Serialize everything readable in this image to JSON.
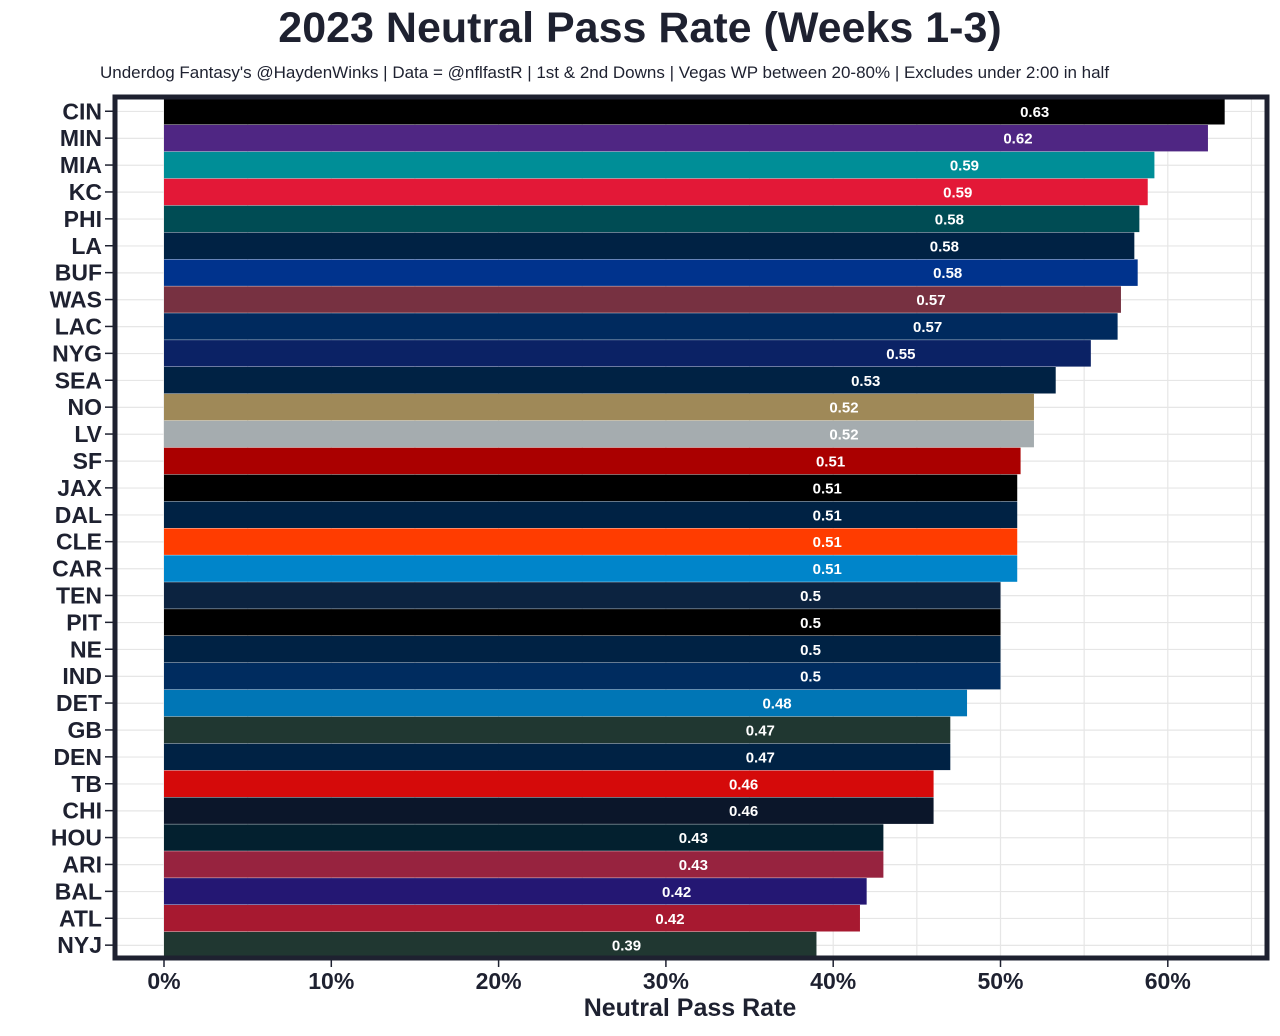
{
  "chart_data": {
    "type": "bar",
    "orientation": "horizontal",
    "title": "2023 Neutral Pass Rate (Weeks 1-3)",
    "subtitle": "Underdog Fantasy's @HaydenWinks | Data = @nflfastR | 1st & 2nd Downs | Vegas WP between 20-80% | Excludes under 2:00 in half",
    "xlabel": "Neutral Pass Rate",
    "ylabel": "",
    "xlim": [
      -0.029,
      0.66
    ],
    "x_ticks": [
      0,
      0.1,
      0.2,
      0.3,
      0.4,
      0.5,
      0.6
    ],
    "x_tick_labels": [
      "0%",
      "10%",
      "20%",
      "30%",
      "40%",
      "50%",
      "60%"
    ],
    "grid": true,
    "categories": [
      "CIN",
      "MIN",
      "MIA",
      "KC",
      "PHI",
      "LA",
      "BUF",
      "WAS",
      "LAC",
      "NYG",
      "SEA",
      "NO",
      "LV",
      "SF",
      "JAX",
      "DAL",
      "CLE",
      "CAR",
      "TEN",
      "PIT",
      "NE",
      "IND",
      "DET",
      "GB",
      "DEN",
      "TB",
      "CHI",
      "HOU",
      "ARI",
      "BAL",
      "ATL",
      "NYJ"
    ],
    "values": [
      0.634,
      0.624,
      0.592,
      0.588,
      0.583,
      0.58,
      0.582,
      0.572,
      0.57,
      0.554,
      0.533,
      0.52,
      0.52,
      0.512,
      0.51,
      0.51,
      0.51,
      0.51,
      0.5,
      0.5,
      0.5,
      0.5,
      0.48,
      0.47,
      0.47,
      0.46,
      0.46,
      0.43,
      0.43,
      0.42,
      0.416,
      0.39
    ],
    "data_labels": [
      "0.63",
      "0.62",
      "0.59",
      "0.59",
      "0.58",
      "0.58",
      "0.58",
      "0.57",
      "0.57",
      "0.55",
      "0.53",
      "0.52",
      "0.52",
      "0.51",
      "0.51",
      "0.51",
      "0.51",
      "0.51",
      "0.5",
      "0.5",
      "0.5",
      "0.5",
      "0.48",
      "0.47",
      "0.47",
      "0.46",
      "0.46",
      "0.43",
      "0.43",
      "0.42",
      "0.42",
      "0.39"
    ],
    "bar_colors": [
      "#000000",
      "#4f2683",
      "#008e97",
      "#e31837",
      "#004c54",
      "#002244",
      "#00338d",
      "#773141",
      "#002a5e",
      "#0b2265",
      "#002244",
      "#9f8958",
      "#a5acaf",
      "#aa0000",
      "#000000",
      "#002244",
      "#ff3c00",
      "#0085ca",
      "#0c2340",
      "#000000",
      "#002244",
      "#002c5f",
      "#0076b6",
      "#203731",
      "#002244",
      "#d50a0a",
      "#0b162a",
      "#03202f",
      "#97233f",
      "#241773",
      "#a71930",
      "#203731"
    ]
  }
}
